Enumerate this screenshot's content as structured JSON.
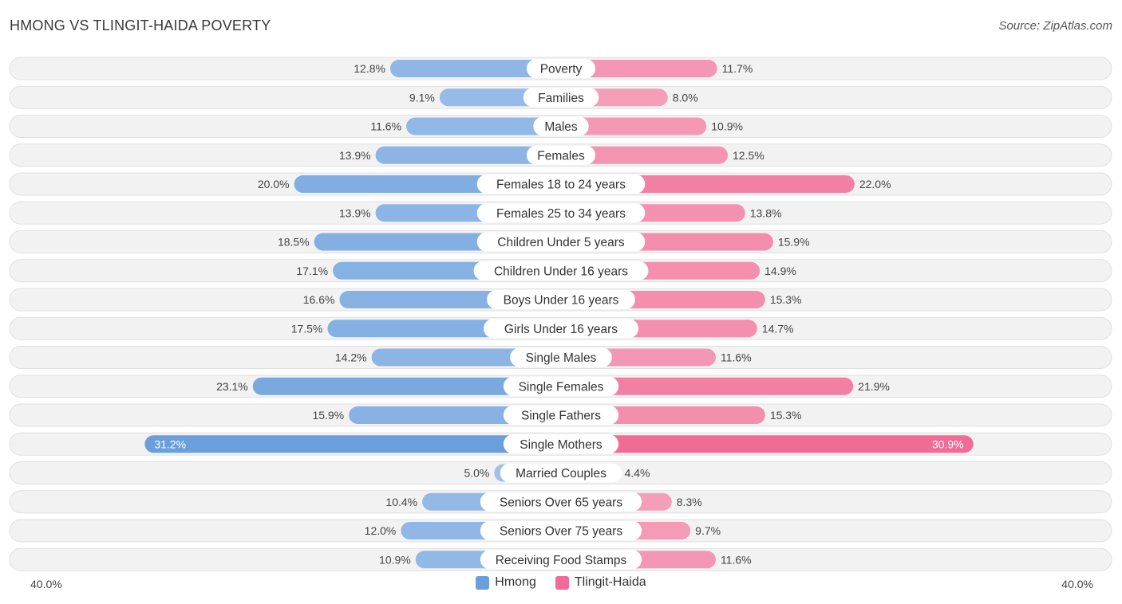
{
  "header": {
    "title": "HMONG VS TLINGIT-HAIDA POVERTY",
    "source": "Source: ZipAtlas.com"
  },
  "axis": {
    "left_label": "40.0%",
    "right_label": "40.0%"
  },
  "legend": {
    "series_a": "Hmong",
    "series_b": "Tlingit-Haida"
  },
  "colors": {
    "hmong": "#6a9fdc",
    "hmong_light": "#a8c6ec",
    "tlingit": "#f06b96",
    "tlingit_light": "#f7b0c7",
    "track": "#efefef"
  },
  "chart_data": {
    "type": "bar",
    "orientation": "horizontal-diverging",
    "title": "HMONG VS TLINGIT-HAIDA POVERTY",
    "xlim": [
      -40,
      40
    ],
    "unit": "%",
    "categories": [
      "Poverty",
      "Families",
      "Males",
      "Females",
      "Females 18 to 24 years",
      "Females 25 to 34 years",
      "Children Under 5 years",
      "Children Under 16 years",
      "Boys Under 16 years",
      "Girls Under 16 years",
      "Single Males",
      "Single Females",
      "Single Fathers",
      "Single Mothers",
      "Married Couples",
      "Seniors Over 65 years",
      "Seniors Over 75 years",
      "Receiving Food Stamps"
    ],
    "series": [
      {
        "name": "Hmong",
        "side": "left",
        "values": [
          12.8,
          9.1,
          11.6,
          13.9,
          20.0,
          13.9,
          18.5,
          17.1,
          16.6,
          17.5,
          14.2,
          23.1,
          15.9,
          31.2,
          5.0,
          10.4,
          12.0,
          10.9
        ],
        "labels": [
          "12.8%",
          "9.1%",
          "11.6%",
          "13.9%",
          "20.0%",
          "13.9%",
          "18.5%",
          "17.1%",
          "16.6%",
          "17.5%",
          "14.2%",
          "23.1%",
          "15.9%",
          "31.2%",
          "5.0%",
          "10.4%",
          "12.0%",
          "10.9%"
        ]
      },
      {
        "name": "Tlingit-Haida",
        "side": "right",
        "values": [
          11.7,
          8.0,
          10.9,
          12.5,
          22.0,
          13.8,
          15.9,
          14.9,
          15.3,
          14.7,
          11.6,
          21.9,
          15.3,
          30.9,
          4.4,
          8.3,
          9.7,
          11.6
        ],
        "labels": [
          "11.7%",
          "8.0%",
          "10.9%",
          "12.5%",
          "22.0%",
          "13.8%",
          "15.9%",
          "14.9%",
          "15.3%",
          "14.7%",
          "11.6%",
          "21.9%",
          "15.3%",
          "30.9%",
          "4.4%",
          "8.3%",
          "9.7%",
          "11.6%"
        ]
      }
    ]
  }
}
